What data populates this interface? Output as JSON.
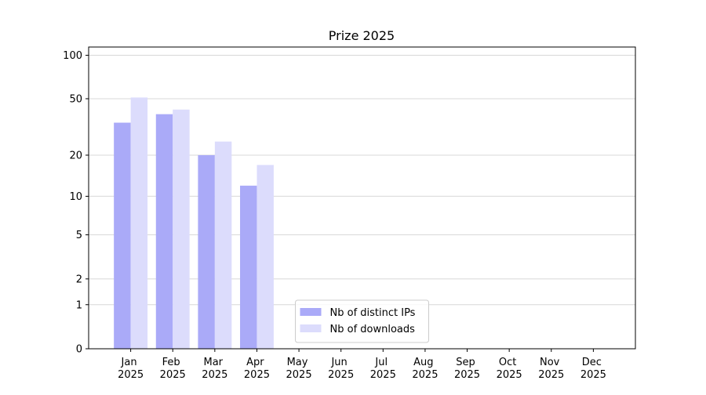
{
  "chart_data": {
    "type": "bar",
    "title": "Prize 2025",
    "categories": [
      "Jan 2025",
      "Feb 2025",
      "Mar 2025",
      "Apr 2025",
      "May 2025",
      "Jun 2025",
      "Jul 2025",
      "Aug 2025",
      "Sep 2025",
      "Oct 2025",
      "Nov 2025",
      "Dec 2025"
    ],
    "series": [
      {
        "name": "Nb of distinct IPs",
        "color": "#aaaaf8",
        "values": [
          34,
          39,
          20,
          12,
          null,
          null,
          null,
          null,
          null,
          null,
          null,
          null
        ]
      },
      {
        "name": "Nb of downloads",
        "color": "#dcdcfc",
        "values": [
          51,
          42,
          25,
          17,
          null,
          null,
          null,
          null,
          null,
          null,
          null,
          null
        ]
      }
    ],
    "yscale": "log1p",
    "ylim": [
      0,
      114
    ],
    "yticks": [
      0,
      1,
      2,
      5,
      10,
      20,
      50,
      100
    ],
    "grid": true,
    "legend": "lower center"
  }
}
